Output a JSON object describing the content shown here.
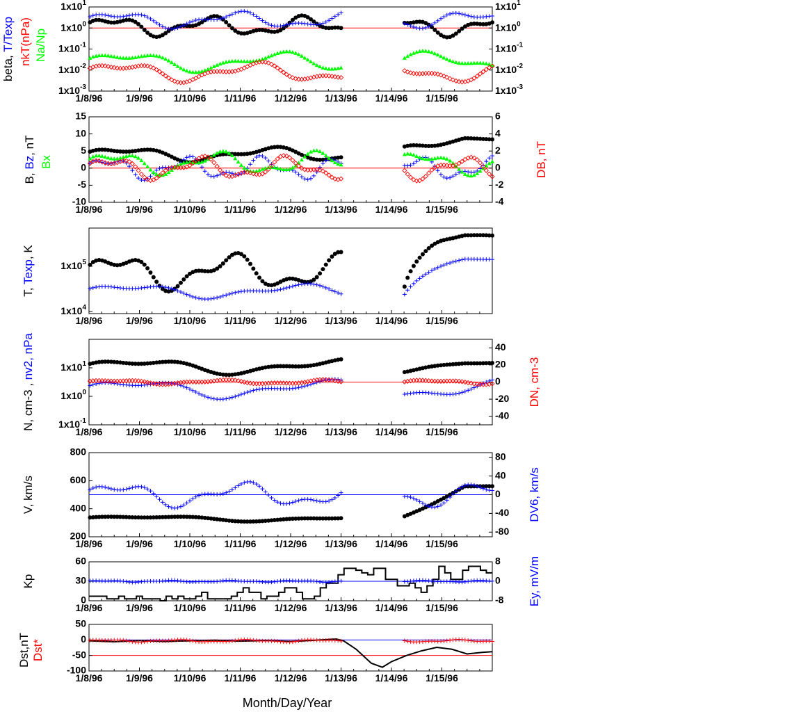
{
  "chart_data": [
    {
      "type": "scatter",
      "id": "p1",
      "yscale": "log",
      "ylim": [
        0.001,
        10
      ],
      "y_ticks": [
        "1x10-3",
        "1x10-2",
        "1x10-1",
        "1x100",
        "1x101"
      ],
      "y2_ticks": [
        "1x10-3",
        "1x10-2",
        "1x10-1",
        "1x100",
        "1x101"
      ],
      "ylabel_parts": [
        {
          "text": "beta, ",
          "color": "#000000"
        },
        {
          "text": "T/Texp",
          "color": "#0000ff"
        }
      ],
      "ylabel2_parts": [
        {
          "text": "nkT(nPa)",
          "color": "#ff0000"
        }
      ],
      "ylabel3_parts": [
        {
          "text": "Na/Np",
          "color": "#00ff00"
        }
      ],
      "ref_lines": [
        {
          "y": 1,
          "color": "#ff0000"
        }
      ],
      "series": [
        {
          "role": "beta",
          "marker": "dot",
          "color": "#000000",
          "gap": [
            5.05,
            6.25
          ],
          "base": 1.2,
          "amp": 0.35,
          "freq": 3.3
        },
        {
          "role": "T/Texp",
          "marker": "plus",
          "color": "#0000ff",
          "gap": [
            5.05,
            6.25
          ],
          "base": 2.4,
          "amp": 0.3,
          "freq": 2.7
        },
        {
          "role": "Na/Np",
          "marker": "triangle",
          "color": "#00ff00",
          "gap": [
            5.05,
            6.25
          ],
          "base": 0.025,
          "amp": 0.35,
          "freq": 2.1
        },
        {
          "role": "nkT",
          "marker": "diamond",
          "color": "#ff0000",
          "gap": [
            5.05,
            6.25
          ],
          "base": 0.008,
          "amp": 0.35,
          "freq": 2.4
        }
      ]
    },
    {
      "type": "scatter",
      "id": "p2",
      "ylim": [
        -10,
        15
      ],
      "y_ticks": [
        "-10",
        "-5",
        "0",
        "5",
        "10",
        "15"
      ],
      "y2lim": [
        -4,
        6
      ],
      "y2_ticks": [
        "-4",
        "-2",
        "0",
        "2",
        "4",
        "6"
      ],
      "ylabel_parts": [
        {
          "text": "B, ",
          "color": "#000000"
        },
        {
          "text": "Bz",
          "color": "#0000ff"
        },
        {
          "text": ", nT",
          "color": "#000000"
        }
      ],
      "ylabel3_parts": [
        {
          "text": "Bx",
          "color": "#00ff00"
        }
      ],
      "ylabel2_parts": [
        {
          "text": "DB, nT",
          "color": "#ff0000"
        }
      ],
      "ref_lines": [
        {
          "y": 0,
          "color": "#ff0000"
        }
      ],
      "series": [
        {
          "role": "B",
          "marker": "dot",
          "color": "#000000",
          "gap": [
            5.05,
            6.25
          ],
          "base": 4,
          "amp": 1.6,
          "freq": 2.2,
          "tail": 10
        },
        {
          "role": "Bz",
          "marker": "plus",
          "color": "#0000ff",
          "gap": [
            5.05,
            6.25
          ],
          "base": 0,
          "amp": 2.5,
          "freq": 4.1
        },
        {
          "role": "Bx",
          "marker": "triangle",
          "color": "#00ff00",
          "gap": [
            5.05,
            6.25
          ],
          "base": 1.5,
          "amp": 2.5,
          "freq": 3.1
        },
        {
          "role": "DB",
          "marker": "diamond",
          "color": "#ff0000",
          "gap": [
            5.05,
            6.25
          ],
          "base": 0,
          "amp": 2.5,
          "freq": 3.6
        }
      ]
    },
    {
      "type": "scatter",
      "id": "p3",
      "yscale": "log",
      "ylim": [
        9000,
        700000
      ],
      "y_ticks": [
        "1x104",
        "1x105"
      ],
      "ylabel_parts": [
        {
          "text": "T, ",
          "color": "#000000"
        },
        {
          "text": "Texp",
          "color": "#0000ff"
        },
        {
          "text": ", K",
          "color": "#000000"
        }
      ],
      "series": [
        {
          "role": "T",
          "marker": "dot",
          "color": "#000000",
          "gap": [
            5.05,
            6.25
          ],
          "base": 75000,
          "amp": 0.3,
          "freq": 2.8,
          "tail": 580000
        },
        {
          "role": "Texp",
          "marker": "plus",
          "color": "#0000ff",
          "gap": [
            5.05,
            6.25
          ],
          "base": 28000,
          "amp": 0.12,
          "freq": 1.9,
          "tail": 170000
        }
      ]
    },
    {
      "type": "scatter",
      "id": "p4",
      "yscale": "log",
      "ylim": [
        0.1,
        100
      ],
      "y_ticks": [
        "1x10-1",
        "1x100",
        "1x101"
      ],
      "y2lim": [
        -50,
        50
      ],
      "y2_ticks": [
        "-40",
        "-20",
        "0",
        "20",
        "40"
      ],
      "ylabel_parts": [
        {
          "text": "N, cm-3 , ",
          "color": "#000000"
        },
        {
          "text": "nv2, nPa",
          "color": "#0000ff"
        }
      ],
      "ylabel2_parts": [
        {
          "text": "DN, cm-3",
          "color": "#ff0000"
        }
      ],
      "ref_lines": [
        {
          "y": 0,
          "axis": "y2",
          "color": "#ff0000"
        }
      ],
      "series": [
        {
          "role": "N",
          "marker": "dot",
          "color": "#000000",
          "gap": [
            5.05,
            6.25
          ],
          "base": 11,
          "amp": 0.2,
          "freq": 1.6,
          "tail": 16
        },
        {
          "role": "nv2",
          "marker": "plus",
          "color": "#0000ff",
          "gap": [
            5.05,
            6.25
          ],
          "base": 1.8,
          "amp": 0.25,
          "freq": 1.7
        },
        {
          "role": "DN",
          "marker": "diamond",
          "color": "#ff0000",
          "axis": "y2",
          "gap": [
            5.05,
            6.25
          ],
          "base": 0,
          "amp": 2,
          "freq": 3.0
        }
      ]
    },
    {
      "type": "scatter",
      "id": "p5",
      "ylim": [
        200,
        800
      ],
      "y_ticks": [
        "200",
        "400",
        "600",
        "800"
      ],
      "y2lim": [
        -90,
        90
      ],
      "y2_ticks": [
        "-80",
        "-40",
        "0",
        "40",
        "80"
      ],
      "ylabel_parts": [
        {
          "text": "V, km/s",
          "color": "#000000"
        }
      ],
      "ylabel2_parts": [
        {
          "text": "DV6, km/s",
          "color": "#0000ff"
        }
      ],
      "ref_lines": [
        {
          "y": 0,
          "axis": "y2",
          "color": "#0000ff"
        }
      ],
      "series": [
        {
          "role": "V",
          "marker": "dot",
          "color": "#000000",
          "gap": [
            5.05,
            6.25
          ],
          "base": 330,
          "amp": 15,
          "freq": 1.4,
          "tail": 620
        },
        {
          "role": "DV6",
          "marker": "plus",
          "color": "#0000ff",
          "axis": "y2",
          "gap": [
            5.05,
            6.25
          ],
          "base": 0,
          "amp": 20,
          "freq": 2.6
        }
      ]
    },
    {
      "type": "line",
      "id": "p6",
      "ylim": [
        0,
        60
      ],
      "y_ticks": [
        "0",
        "30",
        "60"
      ],
      "y2lim": [
        -8,
        8
      ],
      "y2_ticks": [
        "-8",
        "0",
        "8"
      ],
      "ylabel_parts": [
        {
          "text": "Kp",
          "color": "#000000"
        }
      ],
      "ylabel2_parts": [
        {
          "text": "Ey,  mV/m",
          "color": "#0000ff"
        }
      ],
      "ref_lines": [
        {
          "y": 0,
          "axis": "y2",
          "color": "#0000ff"
        }
      ],
      "kp_steps": [
        7,
        7,
        7,
        3,
        3,
        7,
        3,
        3,
        7,
        3,
        3,
        3,
        0,
        7,
        3,
        7,
        3,
        3,
        7,
        13,
        3,
        3,
        3,
        3,
        7,
        13,
        20,
        13,
        13,
        3,
        7,
        7,
        13,
        20,
        20,
        13,
        3,
        3,
        7,
        20,
        27,
        27,
        40,
        50,
        50,
        47,
        43,
        40,
        50,
        50,
        33,
        33,
        23,
        23,
        27,
        20,
        13,
        23,
        33,
        53,
        43,
        33,
        33,
        47,
        53,
        53,
        47,
        43
      ],
      "series": [
        {
          "role": "Ey",
          "marker": "plus",
          "color": "#0000ff",
          "axis": "y2",
          "gap": [
            5.05,
            6.2
          ],
          "base": 0,
          "amp": 0.3,
          "freq": 5.0
        }
      ]
    },
    {
      "type": "line",
      "id": "p7",
      "ylim": [
        -100,
        50
      ],
      "y_ticks": [
        "-100",
        "-50",
        "0",
        "50"
      ],
      "ylabel_parts": [
        {
          "text": "Dst,nT",
          "color": "#000000"
        }
      ],
      "ylabel2_parts": [
        {
          "text": "Dst*",
          "color": "#ff0000"
        }
      ],
      "ref_lines": [
        {
          "y": 0,
          "color": "#0000ff"
        },
        {
          "y": -50,
          "color": "#ff0000"
        }
      ],
      "dst_curve": [
        [
          0,
          -3
        ],
        [
          0.5,
          -6
        ],
        [
          1,
          -2
        ],
        [
          1.5,
          -5
        ],
        [
          2,
          -3
        ],
        [
          2.5,
          -1
        ],
        [
          3,
          -4
        ],
        [
          3.5,
          -2
        ],
        [
          4,
          -5
        ],
        [
          4.5,
          -1
        ],
        [
          4.9,
          3
        ],
        [
          5.05,
          -3
        ],
        [
          5.3,
          -30
        ],
        [
          5.6,
          -75
        ],
        [
          5.82,
          -88
        ],
        [
          6.0,
          -70
        ],
        [
          6.3,
          -50
        ],
        [
          6.6,
          -35
        ],
        [
          6.9,
          -24
        ],
        [
          7.2,
          -30
        ],
        [
          7.5,
          -45
        ],
        [
          7.8,
          -40
        ],
        [
          8.0,
          -38
        ]
      ],
      "series": [
        {
          "role": "Dst*",
          "marker": "plus",
          "color": "#ff0000",
          "gap": [
            5.05,
            6.2
          ],
          "base": -3,
          "amp": 3,
          "freq": 4.5
        }
      ]
    }
  ],
  "x_axis": {
    "xlim": [
      0,
      8
    ],
    "tick_labels": [
      "1/8/96",
      "1/9/96",
      "1/10/96",
      "1/11/96",
      "1/12/96",
      "1/13/96",
      "1/14/96",
      "1/15/96"
    ],
    "label": "Month/Day/Year"
  }
}
